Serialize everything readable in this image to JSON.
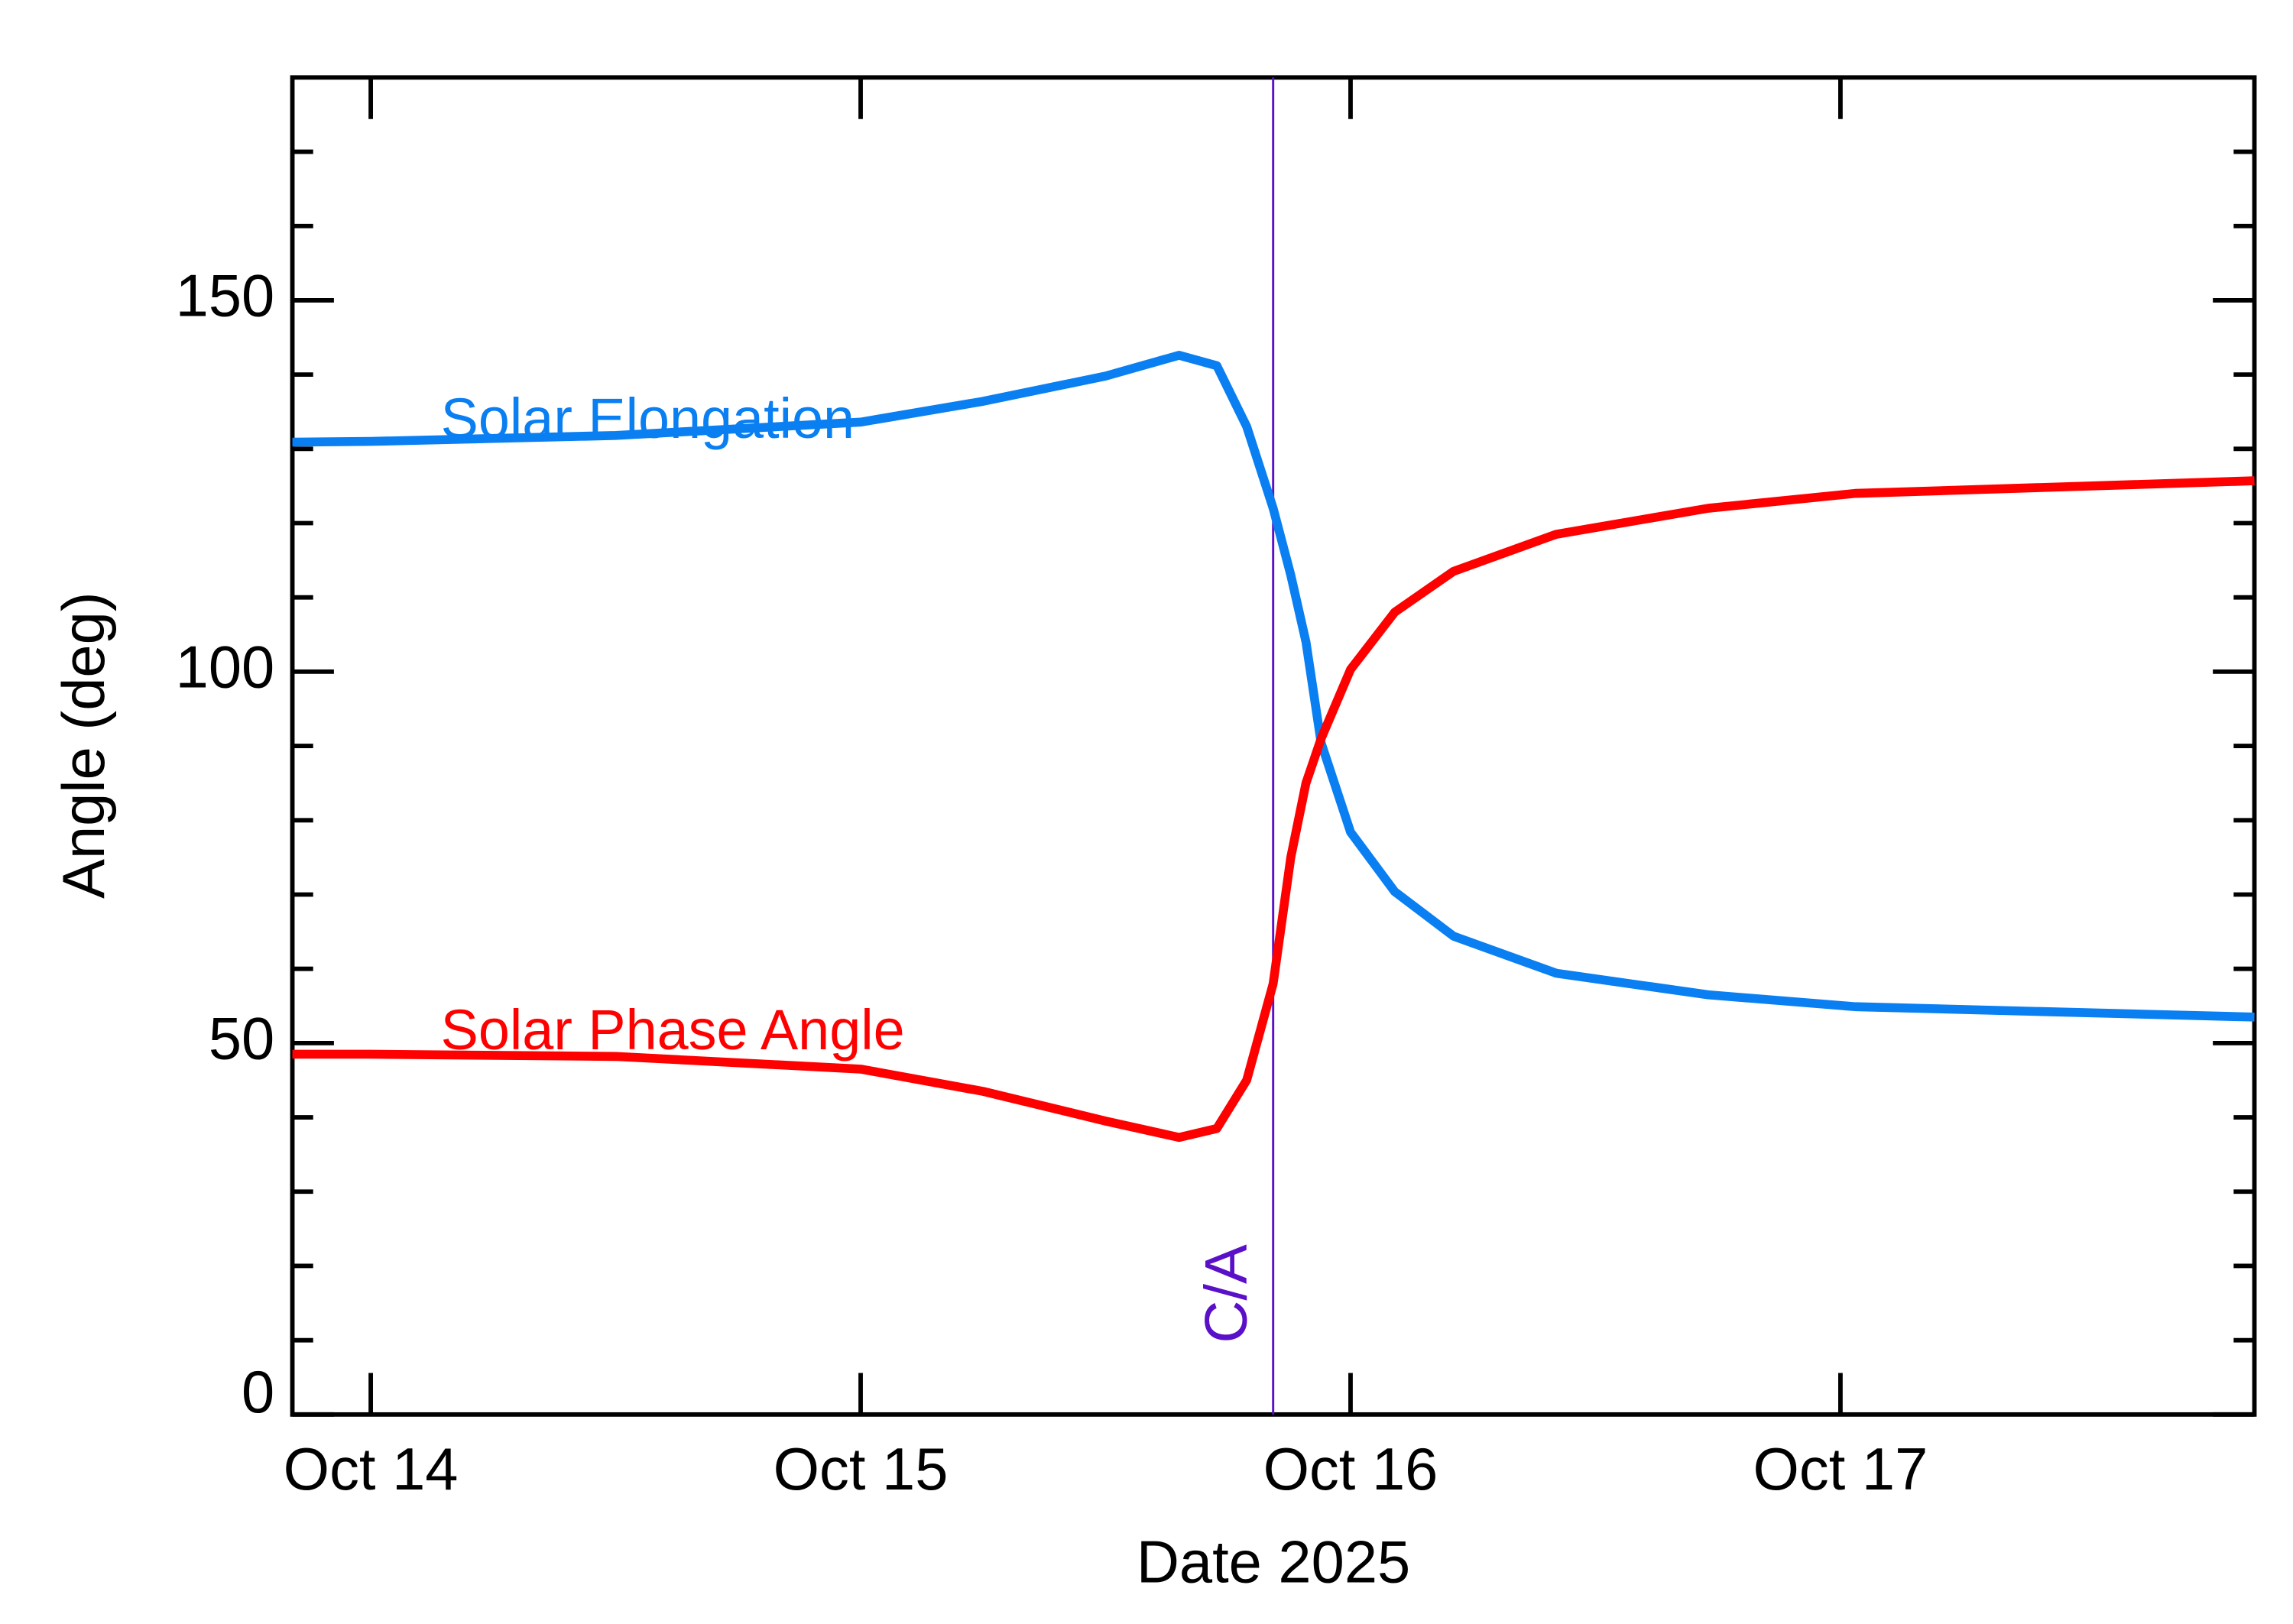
{
  "chart_data": {
    "type": "line",
    "xlabel": "Date 2025",
    "ylabel": "Angle (deg)",
    "x": [
      -0.16,
      0,
      0.5,
      1.0,
      1.25,
      1.5,
      1.65,
      1.727,
      1.788,
      1.842,
      1.878,
      1.909,
      1.94,
      2.0,
      2.09,
      2.21,
      2.42,
      2.73,
      3.03,
      3.845
    ],
    "series": [
      {
        "name": "Solar Elongation",
        "color": "#0a7ff2",
        "values": [
          130.9,
          131,
          131.8,
          133.6,
          136.4,
          139.8,
          142.6,
          141.2,
          133,
          122,
          113,
          104,
          90.4,
          78.4,
          70.4,
          64.4,
          59.4,
          56.5,
          54.9,
          53.5
        ]
      },
      {
        "name": "Solar Phase Angle",
        "color": "#ff0000",
        "values": [
          48.5,
          48.5,
          48.2,
          46.5,
          43.5,
          39.5,
          37.3,
          38.5,
          45,
          58,
          75,
          85,
          91,
          100.3,
          108,
          113.5,
          118.5,
          122,
          124,
          125.7
        ]
      }
    ],
    "xlim": [
      -0.16,
      3.845
    ],
    "xticks": [
      {
        "value": 0,
        "label": "Oct 14"
      },
      {
        "value": 1,
        "label": "Oct 15"
      },
      {
        "value": 2,
        "label": "Oct 16"
      },
      {
        "value": 3,
        "label": "Oct 17"
      }
    ],
    "ylim": [
      0,
      180
    ],
    "yticks": [
      0,
      50,
      100,
      150
    ],
    "yticks_minor": [
      10,
      20,
      30,
      40,
      60,
      70,
      80,
      90,
      110,
      120,
      130,
      140,
      160,
      170
    ],
    "annotations": [
      {
        "text": "C/A",
        "x": 1.842,
        "color": "#5a0fc8"
      }
    ]
  }
}
